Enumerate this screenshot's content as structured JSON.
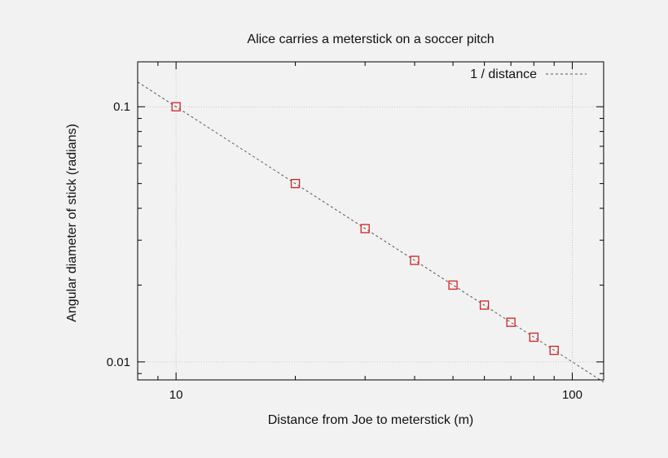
{
  "chart_data": {
    "type": "scatter",
    "title": "Alice carries a meterstick on a soccer pitch",
    "xlabel": "Distance from Joe to meterstick (m)",
    "ylabel": "Angular diameter of stick (radians)",
    "x_scale": "log",
    "y_scale": "log",
    "xlim": [
      8,
      120
    ],
    "ylim": [
      0.0085,
      0.15
    ],
    "x_ticks": [
      {
        "value": 10,
        "label": "10"
      },
      {
        "value": 100,
        "label": "100"
      }
    ],
    "y_ticks": [
      {
        "value": 0.1,
        "label": "0.1"
      },
      {
        "value": 0.01,
        "label": "0.01"
      }
    ],
    "grid": true,
    "legend_position": "top-right",
    "series": [
      {
        "kind": "points",
        "marker": "open-square",
        "color": "#d42020",
        "x": [
          10,
          20,
          30,
          40,
          50,
          60,
          70,
          80,
          90
        ],
        "y": [
          0.1,
          0.05,
          0.0333,
          0.025,
          0.02,
          0.0167,
          0.0143,
          0.0125,
          0.0111
        ]
      },
      {
        "kind": "line",
        "name": "1 / distance",
        "style": "dashed",
        "color": "#555555",
        "function": "1/x"
      }
    ]
  }
}
